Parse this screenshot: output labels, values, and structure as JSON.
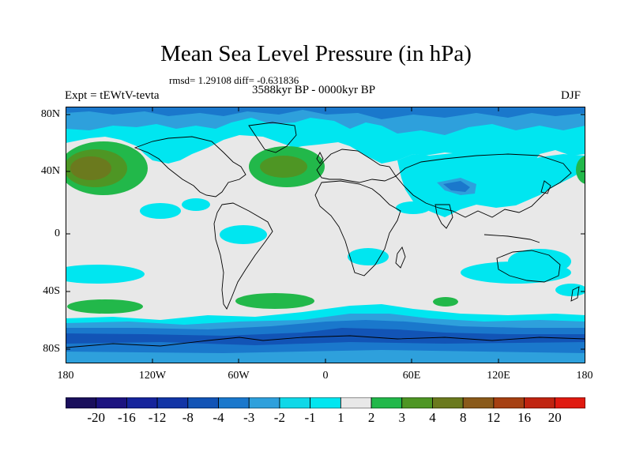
{
  "title": "Mean Sea Level Pressure (in hPa)",
  "stats": "rmsd= 1.29108 diff= -0.631836",
  "period": "3588kyr BP - 0000kyr BP",
  "experiment": "Expt = tEWtV-tevta",
  "season": "DJF",
  "axes": {
    "y_ticks": [
      "80N",
      "40N",
      "0",
      "40S",
      "80S"
    ],
    "x_ticks": [
      "180",
      "120W",
      "60W",
      "0",
      "60E",
      "120E",
      "180"
    ]
  },
  "colorbar": {
    "labels": [
      "-20",
      "-16",
      "-12",
      "-8",
      "-4",
      "-3",
      "-2",
      "-1",
      "1",
      "2",
      "3",
      "4",
      "8",
      "12",
      "16",
      "20"
    ],
    "colors": [
      "#1a0f5c",
      "#1c1380",
      "#16249c",
      "#1235a6",
      "#1254b6",
      "#1a78cc",
      "#2ea0dc",
      "#0fd8e8",
      "#00e6f0",
      "#e8e8e8",
      "#22b84a",
      "#4e9624",
      "#6b7a1e",
      "#8a5a1a",
      "#a64012",
      "#c02410",
      "#e01a10"
    ]
  },
  "colors": {
    "background": "#e8e8e8",
    "minus1": "#00e6f0",
    "minus2": "#2ea0dc",
    "minus3": "#1a78cc",
    "minus4": "#1254b6",
    "minus8": "#1235a6",
    "plus1": "#22b84a",
    "plus2": "#4e9624",
    "plus3": "#6b7a1e"
  }
}
